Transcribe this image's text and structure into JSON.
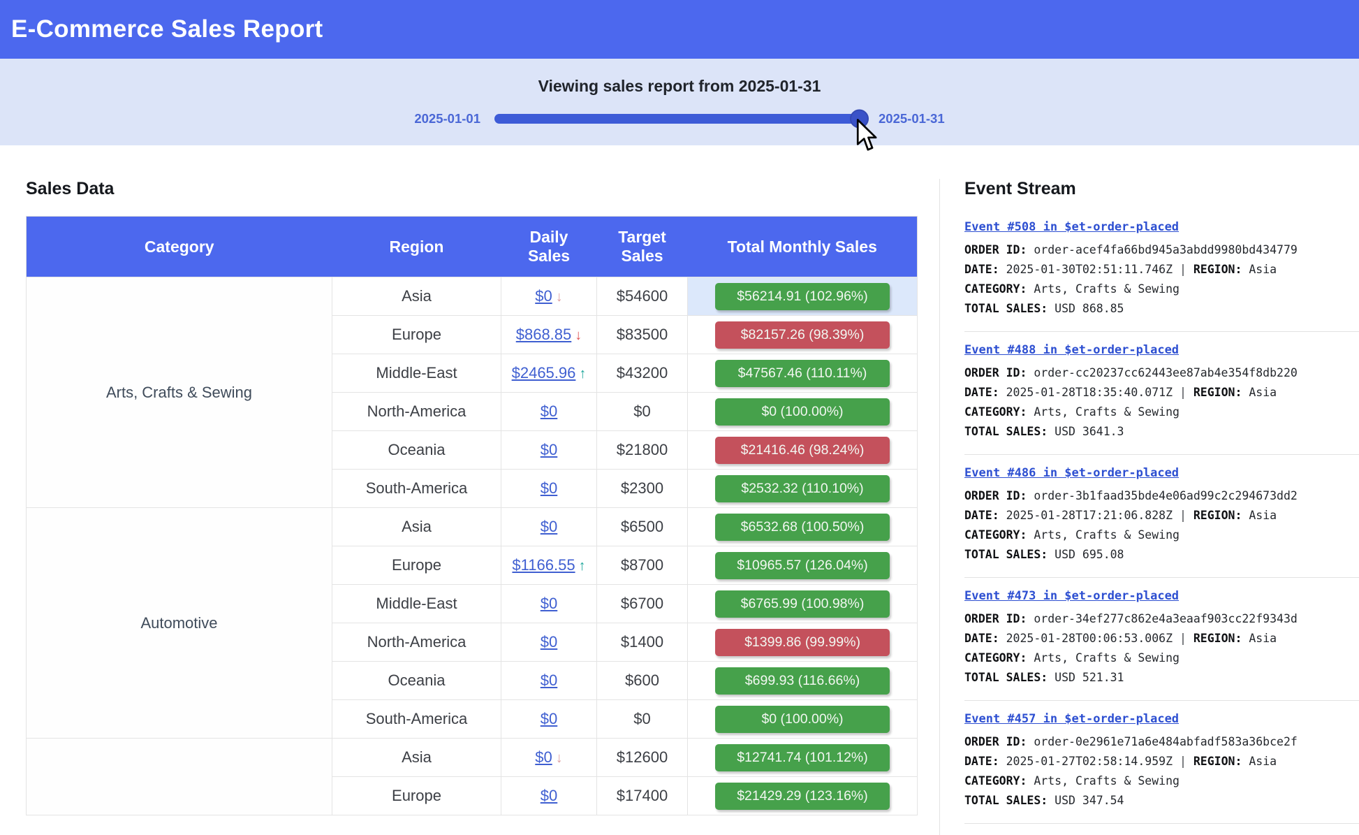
{
  "header": {
    "title": "E-Commerce Sales Report"
  },
  "slider": {
    "title": "Viewing sales report from 2025-01-31",
    "min_label": "2025-01-01",
    "max_label": "2025-01-31",
    "value": "2025-01-31",
    "value_percent": 100
  },
  "sales": {
    "title": "Sales Data",
    "columns": [
      "Category",
      "Region",
      "Daily Sales",
      "Target Sales",
      "Total Monthly Sales"
    ],
    "groups": [
      {
        "category": "Arts, Crafts & Sewing",
        "rows": [
          {
            "region": "Asia",
            "daily": "$0",
            "arrow": "down-muted",
            "target": "$54600",
            "total": "$56214.91 (102.96%)",
            "status": "green",
            "highlight": true
          },
          {
            "region": "Europe",
            "daily": "$868.85",
            "arrow": "down",
            "target": "$83500",
            "total": "$82157.26 (98.39%)",
            "status": "red",
            "highlight": false
          },
          {
            "region": "Middle-East",
            "daily": "$2465.96",
            "arrow": "up",
            "target": "$43200",
            "total": "$47567.46 (110.11%)",
            "status": "green",
            "highlight": false
          },
          {
            "region": "North-America",
            "daily": "$0",
            "arrow": "",
            "target": "$0",
            "total": "$0 (100.00%)",
            "status": "green",
            "highlight": false
          },
          {
            "region": "Oceania",
            "daily": "$0",
            "arrow": "",
            "target": "$21800",
            "total": "$21416.46 (98.24%)",
            "status": "red",
            "highlight": false
          },
          {
            "region": "South-America",
            "daily": "$0",
            "arrow": "",
            "target": "$2300",
            "total": "$2532.32 (110.10%)",
            "status": "green",
            "highlight": false
          }
        ]
      },
      {
        "category": "Automotive",
        "rows": [
          {
            "region": "Asia",
            "daily": "$0",
            "arrow": "",
            "target": "$6500",
            "total": "$6532.68 (100.50%)",
            "status": "green",
            "highlight": false
          },
          {
            "region": "Europe",
            "daily": "$1166.55",
            "arrow": "up",
            "target": "$8700",
            "total": "$10965.57 (126.04%)",
            "status": "green",
            "highlight": false
          },
          {
            "region": "Middle-East",
            "daily": "$0",
            "arrow": "",
            "target": "$6700",
            "total": "$6765.99 (100.98%)",
            "status": "green",
            "highlight": false
          },
          {
            "region": "North-America",
            "daily": "$0",
            "arrow": "",
            "target": "$1400",
            "total": "$1399.86 (99.99%)",
            "status": "red",
            "highlight": false
          },
          {
            "region": "Oceania",
            "daily": "$0",
            "arrow": "",
            "target": "$600",
            "total": "$699.93 (116.66%)",
            "status": "green",
            "highlight": false
          },
          {
            "region": "South-America",
            "daily": "$0",
            "arrow": "",
            "target": "$0",
            "total": "$0 (100.00%)",
            "status": "green",
            "highlight": false
          }
        ]
      },
      {
        "category": "",
        "rows": [
          {
            "region": "Asia",
            "daily": "$0",
            "arrow": "down-muted",
            "target": "$12600",
            "total": "$12741.74 (101.12%)",
            "status": "green",
            "highlight": false
          },
          {
            "region": "Europe",
            "daily": "$0",
            "arrow": "",
            "target": "$17400",
            "total": "$21429.29 (123.16%)",
            "status": "green",
            "highlight": false
          }
        ]
      }
    ]
  },
  "events": {
    "title": "Event Stream",
    "labels": {
      "order_id": "ORDER ID:",
      "date": "DATE:",
      "region": "REGION:",
      "category": "CATEGORY:",
      "total_sales": "TOTAL SALES:"
    },
    "items": [
      {
        "title": "Event #508 in $et-order-placed",
        "order_id": "order-acef4fa66bd945a3abdd9980bd434779",
        "date": "2025-01-30T02:51:11.746Z",
        "region": "Asia",
        "category": "Arts, Crafts & Sewing",
        "total_sales": "USD 868.85"
      },
      {
        "title": "Event #488 in $et-order-placed",
        "order_id": "order-cc20237cc62443ee87ab4e354f8db220",
        "date": "2025-01-28T18:35:40.071Z",
        "region": "Asia",
        "category": "Arts, Crafts & Sewing",
        "total_sales": "USD 3641.3"
      },
      {
        "title": "Event #486 in $et-order-placed",
        "order_id": "order-3b1faad35bde4e06ad99c2c294673dd2",
        "date": "2025-01-28T17:21:06.828Z",
        "region": "Asia",
        "category": "Arts, Crafts & Sewing",
        "total_sales": "USD 695.08"
      },
      {
        "title": "Event #473 in $et-order-placed",
        "order_id": "order-34ef277c862e4a3eaaf903cc22f9343d",
        "date": "2025-01-28T00:06:53.006Z",
        "region": "Asia",
        "category": "Arts, Crafts & Sewing",
        "total_sales": "USD 521.31"
      },
      {
        "title": "Event #457 in $et-order-placed",
        "order_id": "order-0e2961e71a6e484abfadf583a36bce2f",
        "date": "2025-01-27T02:58:14.959Z",
        "region": "Asia",
        "category": "Arts, Crafts & Sewing",
        "total_sales": "USD 347.54"
      }
    ]
  },
  "colors": {
    "accent": "#4c68ee",
    "band": "#dce4f8",
    "green": "#46a14b",
    "red": "#c4515c",
    "link": "#3f5fd1",
    "event_link": "#2d4fd1",
    "slider_track": "#3d5bd7",
    "slider_thumb": "#3a52c8",
    "highlight": "#dce8fb"
  }
}
